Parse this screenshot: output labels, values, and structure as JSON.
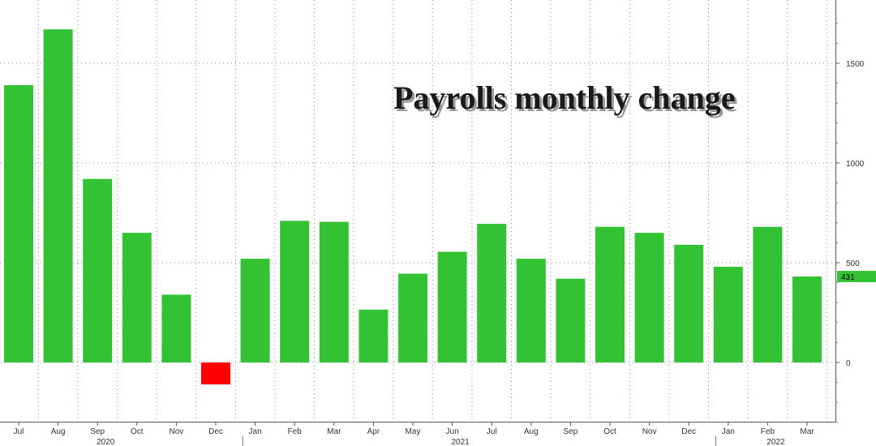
{
  "chart_data": {
    "type": "bar",
    "title": "Payrolls monthly change",
    "categories": [
      "Jul",
      "Aug",
      "Sep",
      "Oct",
      "Nov",
      "Dec",
      "Jan",
      "Feb",
      "Mar",
      "Apr",
      "May",
      "Jun",
      "Jul",
      "Aug",
      "Sep",
      "Oct",
      "Nov",
      "Dec",
      "Jan",
      "Feb",
      "Mar"
    ],
    "year_labels": [
      {
        "label": "2020",
        "category_index": 2
      },
      {
        "label": "2021",
        "category_index": 11
      },
      {
        "label": "2022",
        "category_index": 19
      }
    ],
    "values": [
      1390,
      1670,
      920,
      650,
      340,
      -110,
      520,
      710,
      705,
      265,
      445,
      555,
      695,
      520,
      420,
      680,
      650,
      590,
      480,
      680,
      431
    ],
    "y_ticks": [
      0,
      500,
      1000,
      1500
    ],
    "ylim": [
      -300,
      1800
    ],
    "grid": true,
    "y_axis_position": "right",
    "last_value_label": "431",
    "colors": {
      "positive": "#33c233",
      "negative": "#ff0000",
      "grid": "#888888",
      "label_bg": "#33c233"
    }
  }
}
